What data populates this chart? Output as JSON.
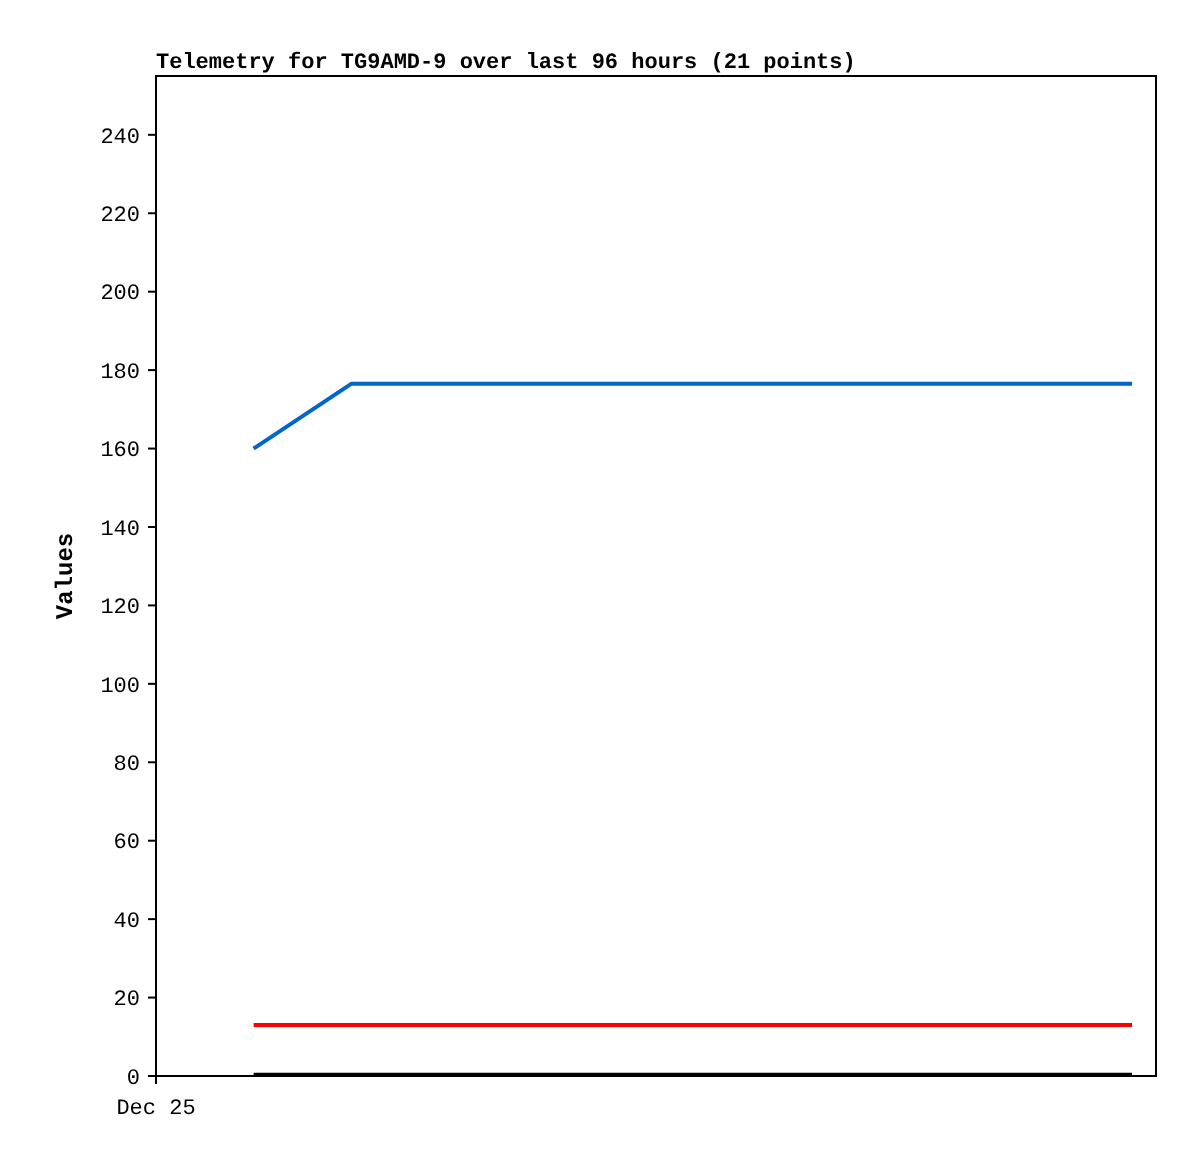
{
  "chart_data": {
    "type": "line",
    "title": "Telemetry for TG9AMD-9 over last 96 hours (21 points)",
    "ylabel": "Values",
    "categories": [
      "Dec 25",
      null,
      null,
      null,
      null,
      null,
      null,
      null,
      null,
      null,
      null
    ],
    "ylim": [
      0,
      255
    ],
    "yticks": [
      0,
      20,
      40,
      60,
      80,
      100,
      120,
      140,
      160,
      180,
      200,
      220,
      240
    ],
    "series": [
      {
        "color": "#0066cc",
        "values": [
          null,
          160,
          176.5,
          176.5,
          176.5,
          176.5,
          176.5,
          176.5,
          176.5,
          176.5,
          176.5
        ]
      },
      {
        "color": "#ff0000",
        "values": [
          null,
          13,
          13,
          13,
          13,
          13,
          13,
          13,
          13,
          13,
          13
        ]
      },
      {
        "color": "#000000",
        "values": [
          null,
          0.3,
          0.3,
          0.3,
          0.3,
          0.3,
          0.3,
          0.3,
          0.3,
          0.3,
          0.3
        ]
      }
    ],
    "grid": false,
    "marker": "none",
    "line_style": "solid"
  }
}
